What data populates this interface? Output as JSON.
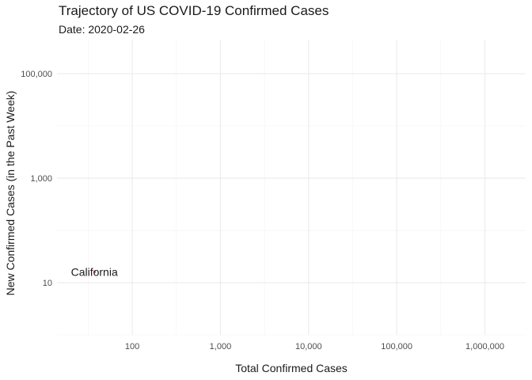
{
  "chart_data": {
    "type": "line",
    "title": "Trajectory of US COVID-19 Confirmed Cases",
    "subtitle": "Date: 2020-02-26",
    "xlabel": "Total Confirmed Cases",
    "ylabel": "New Confirmed Cases (in the Past Week)",
    "x_scale": "log10",
    "y_scale": "log10",
    "xlim": [
      14,
      2900000
    ],
    "ylim": [
      1,
      450000
    ],
    "x_major_ticks": [
      100,
      1000,
      10000,
      100000,
      1000000
    ],
    "x_tick_labels": [
      "100",
      "1,000",
      "10,000",
      "100,000",
      "1,000,000"
    ],
    "x_minor_ticks": [
      31.6,
      316,
      3160,
      31600,
      316000
    ],
    "y_major_ticks": [
      10,
      1000,
      100000
    ],
    "y_tick_labels": [
      "10",
      "1,000",
      "100,000"
    ],
    "y_minor_ticks": [
      1,
      100,
      10000
    ],
    "grid": true,
    "series": [
      {
        "name": "California",
        "color": "#e35d6a",
        "points": [
          {
            "x": 21,
            "y": 14
          }
        ]
      }
    ]
  }
}
